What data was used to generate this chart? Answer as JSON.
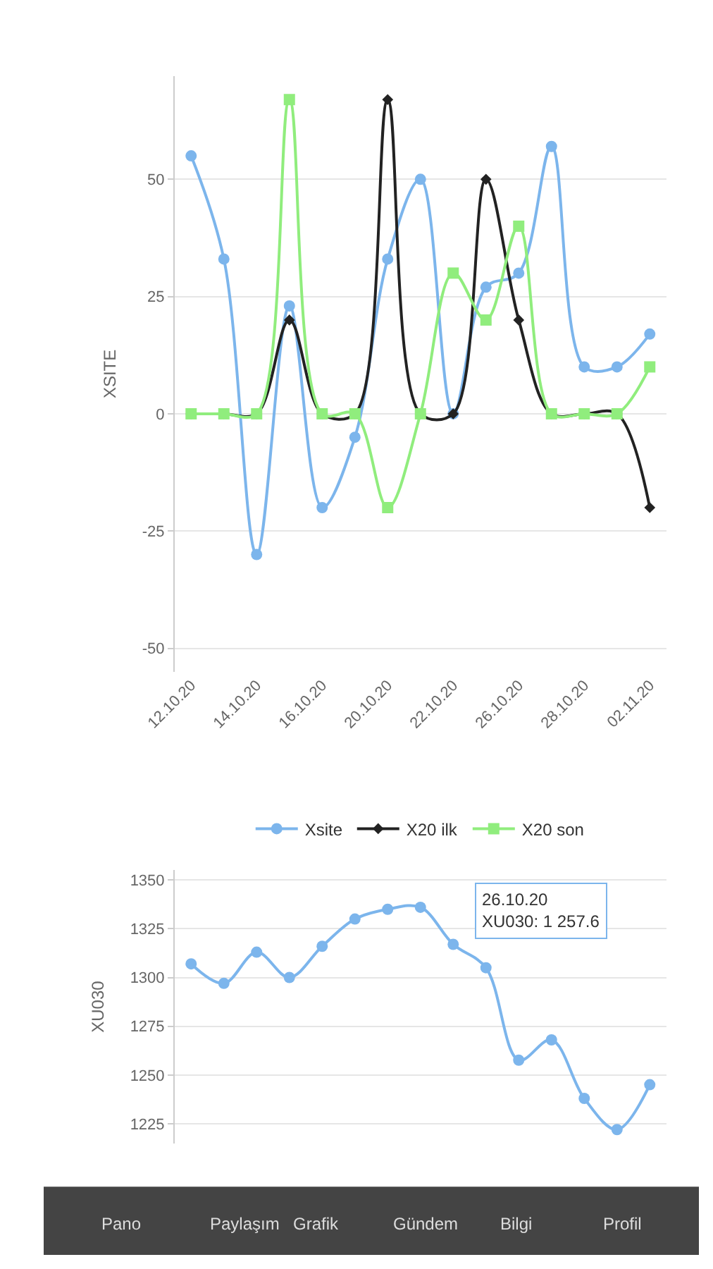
{
  "chart_data": [
    {
      "type": "line",
      "ylabel": "XSITE",
      "categories": [
        "12.10.20",
        null,
        "14.10.20",
        null,
        "16.10.20",
        null,
        "20.10.20",
        null,
        "22.10.20",
        null,
        "26.10.20",
        null,
        "28.10.20",
        null,
        "02.11.20"
      ],
      "ylim": [
        -55,
        72
      ],
      "yticks": [
        -50,
        -25,
        0,
        25,
        50
      ],
      "grid": "y",
      "legend": "bottom",
      "series": [
        {
          "name": "Xsite",
          "color": "#7cb5ec",
          "marker": "circle",
          "values": [
            55,
            33,
            -30,
            23,
            -20,
            -5,
            33,
            50,
            0,
            27,
            30,
            57,
            10,
            10,
            17
          ]
        },
        {
          "name": "X20 ilk",
          "color": "#222222",
          "marker": "diamond",
          "values": [
            0,
            0,
            0,
            20,
            0,
            0,
            67,
            0,
            0,
            50,
            20,
            0,
            0,
            0,
            -20
          ]
        },
        {
          "name": "X20 son",
          "color": "#90ed7d",
          "marker": "square",
          "values": [
            0,
            0,
            0,
            67,
            0,
            0,
            -20,
            0,
            30,
            20,
            40,
            0,
            0,
            0,
            10
          ]
        }
      ]
    },
    {
      "type": "line",
      "ylabel": "XU030",
      "categories": [
        null,
        null,
        null,
        null,
        null,
        null,
        null,
        null,
        null,
        null,
        null,
        null,
        null,
        null,
        null
      ],
      "ylim": [
        1215,
        1355
      ],
      "yticks": [
        1225,
        1250,
        1275,
        1300,
        1325,
        1350
      ],
      "grid": "y",
      "tick_labels": "y",
      "annotations": [
        "26.10.20",
        "XU030: 1 257.6"
      ],
      "series": [
        {
          "color": "#7cb5ec",
          "marker": "circle",
          "values": [
            1307,
            1297,
            1313,
            1300,
            1316,
            1330,
            1335,
            1336,
            1317,
            1305,
            1257.6,
            1268,
            1238,
            1222,
            1245
          ]
        }
      ]
    },
    {
      "type": "other",
      "annotations": [
        "Pano",
        "Paylaşım",
        "Grafik",
        "Gündem",
        "Bilgi",
        "Profil"
      ]
    }
  ]
}
